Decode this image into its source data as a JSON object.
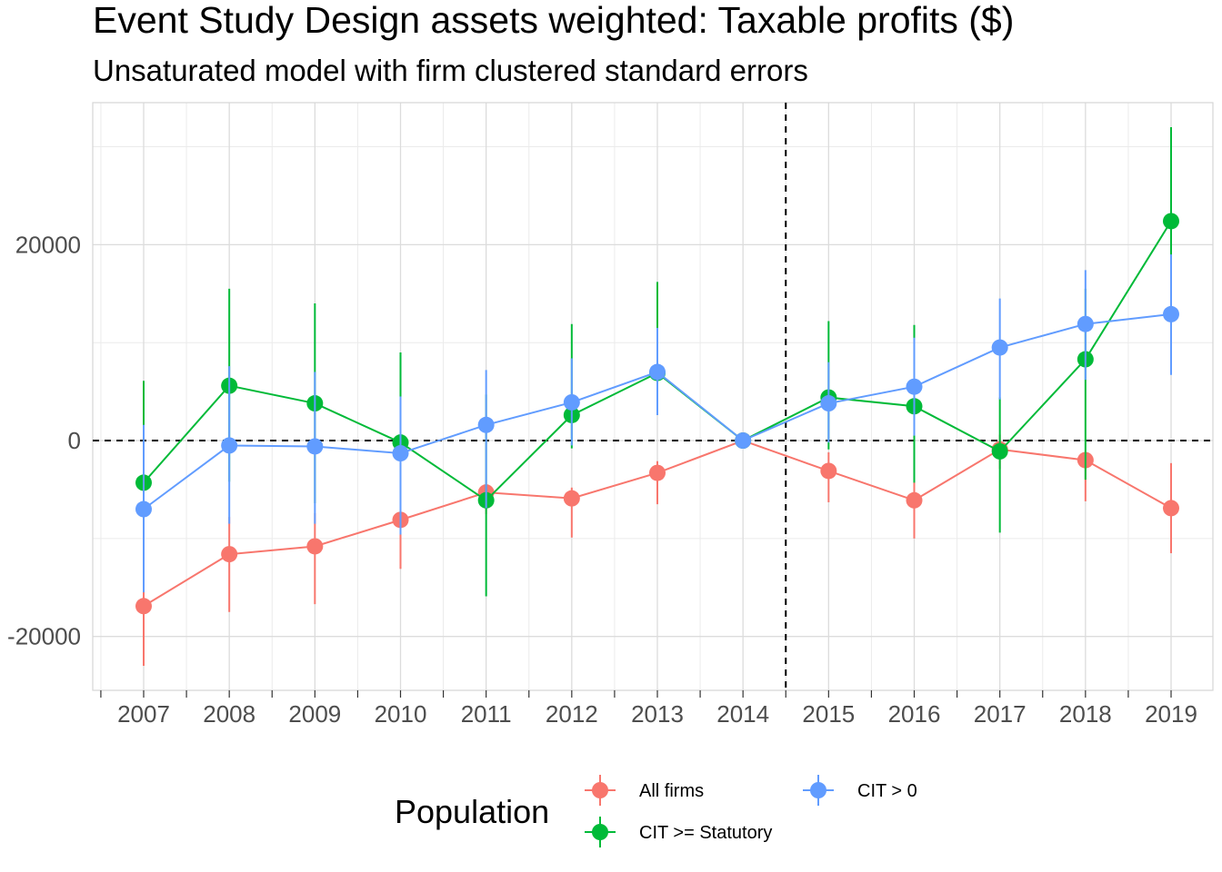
{
  "chart_data": {
    "type": "line",
    "title": "Event Study Design assets weighted: Taxable profits  ($)",
    "subtitle": "Unsaturated model with firm clustered standard errors",
    "xlabel": "",
    "ylabel": "",
    "x": [
      "2007",
      "2008",
      "2009",
      "2010",
      "2011",
      "2012",
      "2013",
      "2014",
      "2015",
      "2016",
      "2017",
      "2018",
      "2019"
    ],
    "ylim": [
      -25500,
      34500
    ],
    "y_ticks": [
      -20000,
      0,
      20000
    ],
    "y_tick_labels": [
      "-20000",
      "0",
      "20000"
    ],
    "grid": true,
    "reference_lines": {
      "horizontal_y": 0,
      "vertical_between": [
        "2014",
        "2015"
      ]
    },
    "legend": {
      "title": "Population",
      "position": "bottom",
      "entries": [
        "All firms",
        "CIT >= Statutory",
        "CIT > 0"
      ]
    },
    "series": [
      {
        "name": "All firms",
        "color": "#F8766D",
        "values": [
          -16900,
          -11600,
          -10800,
          -8100,
          -5300,
          -5900,
          -3300,
          0,
          -3100,
          -6100,
          -900,
          -2000,
          -6900
        ],
        "lower": [
          -23000,
          -17500,
          -16700,
          -13100,
          -7500,
          -9900,
          -6500,
          0,
          -6300,
          -10000,
          -2900,
          -6200,
          -11500
        ],
        "upper": [
          -14900,
          -7800,
          -7400,
          -4500,
          -4500,
          -4800,
          -2100,
          0,
          -1200,
          -4200,
          600,
          -1500,
          -2300
        ]
      },
      {
        "name": "CIT >= Statutory",
        "color": "#00BA38",
        "values": [
          -4300,
          5600,
          3800,
          -200,
          -6100,
          2600,
          6900,
          0,
          4400,
          3500,
          -1100,
          8300,
          22400
        ],
        "lower": [
          -14500,
          -4200,
          -6400,
          -9100,
          -15900,
          -800,
          2800,
          0,
          -900,
          -4300,
          -9400,
          -4000,
          12600
        ],
        "upper": [
          6100,
          15500,
          14000,
          9000,
          4700,
          11900,
          16200,
          0,
          12200,
          11800,
          4400,
          15500,
          32000
        ]
      },
      {
        "name": "CIT > 0",
        "color": "#619CFF",
        "values": [
          -7000,
          -500,
          -600,
          -1300,
          1600,
          3900,
          7000,
          0,
          3800,
          5500,
          9500,
          11900,
          12900
        ],
        "lower": [
          -15500,
          -8500,
          -8500,
          -9600,
          -6900,
          -500,
          2600,
          0,
          -200,
          500,
          4200,
          6200,
          6700
        ],
        "upper": [
          1600,
          7600,
          7000,
          4500,
          7200,
          8400,
          11500,
          0,
          8000,
          10500,
          14500,
          17400,
          19000
        ]
      }
    ]
  }
}
